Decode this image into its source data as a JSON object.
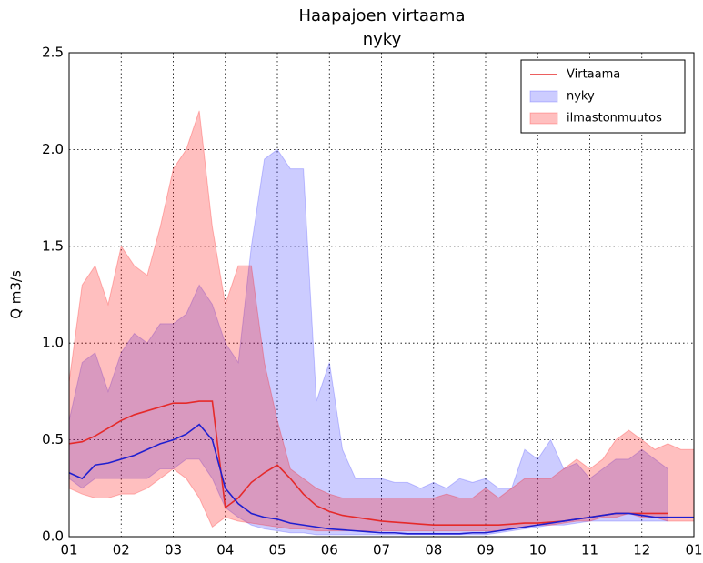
{
  "chart_data": {
    "type": "line",
    "title": "Haapajoen virtaama",
    "subtitle": "nyky",
    "y_label": "Q m3/s",
    "x": [
      0,
      0.25,
      0.5,
      0.75,
      1,
      1.25,
      1.5,
      1.75,
      2,
      2.25,
      2.5,
      2.75,
      3,
      3.25,
      3.5,
      3.75,
      4,
      4.25,
      4.5,
      4.75,
      5,
      5.25,
      5.5,
      5.75,
      6,
      6.25,
      6.5,
      6.75,
      7,
      7.25,
      7.5,
      7.75,
      8,
      8.25,
      8.5,
      8.75,
      9,
      9.25,
      9.5,
      9.75,
      10,
      10.25,
      10.5,
      10.75,
      11,
      11.25,
      11.5,
      11.75,
      12
    ],
    "series": [
      {
        "name": "Virtaama",
        "color": "#e52a2a",
        "values": [
          0.48,
          0.49,
          0.52,
          0.56,
          0.6,
          0.63,
          0.65,
          0.67,
          0.69,
          0.69,
          0.7,
          0.7,
          0.15,
          0.2,
          0.28,
          0.33,
          0.37,
          0.3,
          0.22,
          0.16,
          0.13,
          0.11,
          0.1,
          0.09,
          0.08,
          0.075,
          0.07,
          0.065,
          0.06,
          0.06,
          0.06,
          0.06,
          0.06,
          0.06,
          0.065,
          0.07,
          0.07,
          0.075,
          0.08,
          0.09,
          0.1,
          0.11,
          0.12,
          0.12,
          0.12,
          0.12,
          0.12,
          null,
          null
        ]
      },
      {
        "color": "#1f1fd0",
        "values": [
          0.33,
          0.3,
          0.37,
          0.38,
          0.4,
          0.42,
          0.45,
          0.48,
          0.5,
          0.53,
          0.58,
          0.5,
          0.25,
          0.17,
          0.12,
          0.1,
          0.09,
          0.07,
          0.06,
          0.05,
          0.04,
          0.035,
          0.03,
          0.025,
          0.02,
          0.02,
          0.015,
          0.015,
          0.015,
          0.015,
          0.015,
          0.02,
          0.02,
          0.03,
          0.04,
          0.05,
          0.06,
          0.07,
          0.08,
          0.09,
          0.1,
          0.11,
          0.12,
          0.12,
          0.11,
          0.1,
          0.1,
          0.1,
          0.1
        ]
      }
    ],
    "bands": [
      {
        "name": "nyky",
        "color": "#0000ff",
        "alpha": 0.2,
        "lower": [
          0.3,
          0.25,
          0.3,
          0.3,
          0.3,
          0.3,
          0.3,
          0.35,
          0.35,
          0.4,
          0.4,
          0.3,
          0.15,
          0.1,
          0.06,
          0.04,
          0.03,
          0.02,
          0.02,
          0.01,
          0.01,
          0.01,
          0.01,
          0.01,
          0.01,
          0.01,
          0.01,
          0.01,
          0.01,
          0.01,
          0.01,
          0.01,
          0.01,
          0.02,
          0.03,
          0.04,
          0.05,
          0.06,
          0.06,
          0.07,
          0.08,
          0.08,
          0.08,
          0.08,
          0.08,
          0.08,
          0.08,
          null,
          null
        ],
        "upper": [
          0.6,
          0.9,
          0.95,
          0.75,
          0.95,
          1.05,
          1.0,
          1.1,
          1.1,
          1.15,
          1.3,
          1.2,
          1.0,
          0.9,
          1.5,
          1.95,
          2.0,
          1.9,
          1.9,
          0.7,
          0.9,
          0.45,
          0.3,
          0.3,
          0.3,
          0.28,
          0.28,
          0.25,
          0.28,
          0.25,
          0.3,
          0.28,
          0.3,
          0.25,
          0.25,
          0.45,
          0.4,
          0.5,
          0.35,
          0.38,
          0.3,
          0.35,
          0.4,
          0.4,
          0.45,
          0.4,
          0.35,
          null,
          null
        ]
      },
      {
        "name": "ilmastonmuutos",
        "color": "#ff0000",
        "alpha": 0.25,
        "lower": [
          0.25,
          0.22,
          0.2,
          0.2,
          0.22,
          0.22,
          0.25,
          0.3,
          0.35,
          0.3,
          0.2,
          0.05,
          0.1,
          0.08,
          0.07,
          0.06,
          0.05,
          0.04,
          0.04,
          0.03,
          0.03,
          0.03,
          0.03,
          0.03,
          0.03,
          0.03,
          0.03,
          0.03,
          0.03,
          0.03,
          0.03,
          0.03,
          0.03,
          0.03,
          0.04,
          0.05,
          0.06,
          0.06,
          0.07,
          0.08,
          0.08,
          0.1,
          0.1,
          0.12,
          0.1,
          0.1,
          0.08,
          0.08,
          0.08
        ],
        "upper": [
          0.8,
          1.3,
          1.4,
          1.2,
          1.5,
          1.4,
          1.35,
          1.6,
          1.9,
          2.0,
          2.2,
          1.6,
          1.2,
          1.4,
          1.4,
          0.9,
          0.6,
          0.35,
          0.3,
          0.25,
          0.22,
          0.2,
          0.2,
          0.2,
          0.2,
          0.2,
          0.2,
          0.2,
          0.2,
          0.22,
          0.2,
          0.2,
          0.25,
          0.2,
          0.25,
          0.3,
          0.3,
          0.3,
          0.35,
          0.4,
          0.35,
          0.4,
          0.5,
          0.55,
          0.5,
          0.45,
          0.48,
          0.45,
          0.45
        ]
      }
    ],
    "xlim": [
      0,
      12
    ],
    "xticks": [
      {
        "value": 0,
        "label": "01"
      },
      {
        "value": 1,
        "label": "02"
      },
      {
        "value": 2,
        "label": "03"
      },
      {
        "value": 3,
        "label": "04"
      },
      {
        "value": 4,
        "label": "05"
      },
      {
        "value": 5,
        "label": "06"
      },
      {
        "value": 6,
        "label": "07"
      },
      {
        "value": 7,
        "label": "08"
      },
      {
        "value": 8,
        "label": "09"
      },
      {
        "value": 9,
        "label": "10"
      },
      {
        "value": 10,
        "label": "11"
      },
      {
        "value": 11,
        "label": "12"
      },
      {
        "value": 12,
        "label": "01"
      }
    ],
    "ylim": [
      0,
      2.5
    ],
    "yticks": [
      {
        "value": 0,
        "label": "0.0"
      },
      0.5,
      {
        "value": 1,
        "label": "1.0"
      },
      1.5,
      {
        "value": 2,
        "label": "2.0"
      },
      2.5
    ],
    "grid": true,
    "legend": "upper right"
  }
}
